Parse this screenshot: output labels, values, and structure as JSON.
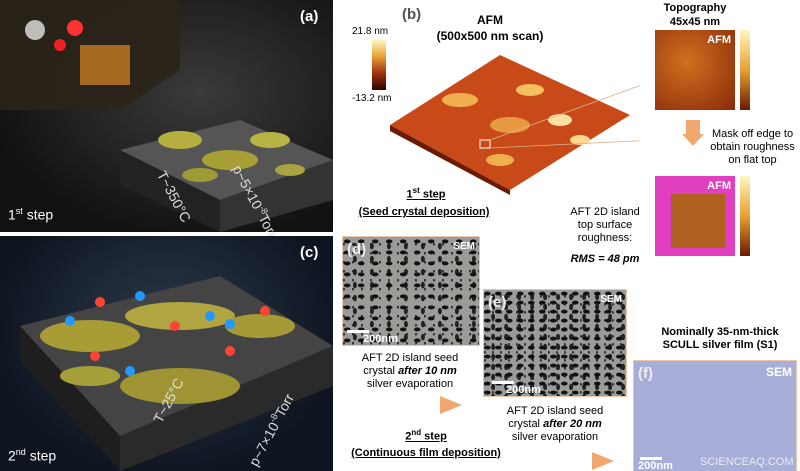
{
  "panel_a": {
    "label": "(a)",
    "step": {
      "num": "1",
      "sup": "st",
      "rest": " step"
    },
    "temperature": "T~350°C",
    "pressure": "p~5×10",
    "pressure_exp": "-8",
    "pressure_unit": "Torr"
  },
  "panel_b": {
    "label": "(b)",
    "title": "AFM",
    "subtitle": "(500x500 nm scan)",
    "colorbar_max": "21.8 nm",
    "colorbar_min": "-13.2 nm",
    "inset_title": "Topography",
    "inset_size": "45x45 nm",
    "inset_tag": "AFM",
    "mask_note": [
      "Mask off edge to",
      "obtain roughness",
      "on flat top"
    ],
    "masked_tag": "AFM",
    "step": {
      "num": "1",
      "sup": "st",
      "rest": " step"
    },
    "step_desc": "(Seed crystal deposition)",
    "roughness_note": [
      "AFT 2D island",
      "top surface",
      "roughness:"
    ],
    "rms": "RMS = 48 pm"
  },
  "panel_c": {
    "label": "(c)",
    "step": {
      "num": "2",
      "sup": "nd",
      "rest": " step"
    },
    "temperature": "T~25°C",
    "pressure": "p~7×10",
    "pressure_exp": "-8",
    "pressure_unit": "Torr"
  },
  "panel_d": {
    "label": "(d)",
    "tag": "SEM",
    "scale": "200nm",
    "caption": {
      "line1": "AFT 2D island seed",
      "line2a": "crystal ",
      "line2b": "after 10 nm",
      "line3": "silver evaporation"
    }
  },
  "panel_e": {
    "label": "(e)",
    "tag": "SEM",
    "scale": "200nm",
    "caption": {
      "line1": "AFT 2D island seed",
      "line2a": "crystal ",
      "line2b": "after 20 nm",
      "line3": "silver evaporation"
    }
  },
  "panel_f": {
    "label": "(f)",
    "tag": "SEM",
    "scale": "200nm",
    "title": [
      "Nominally 35-nm-thick",
      "SCULL silver film (S1)"
    ]
  },
  "second_step": {
    "step": {
      "num": "2",
      "sup": "nd",
      "rest": " step"
    },
    "desc": "(Continuous film deposition)"
  },
  "watermark": "SCIENCEAQ.COM"
}
